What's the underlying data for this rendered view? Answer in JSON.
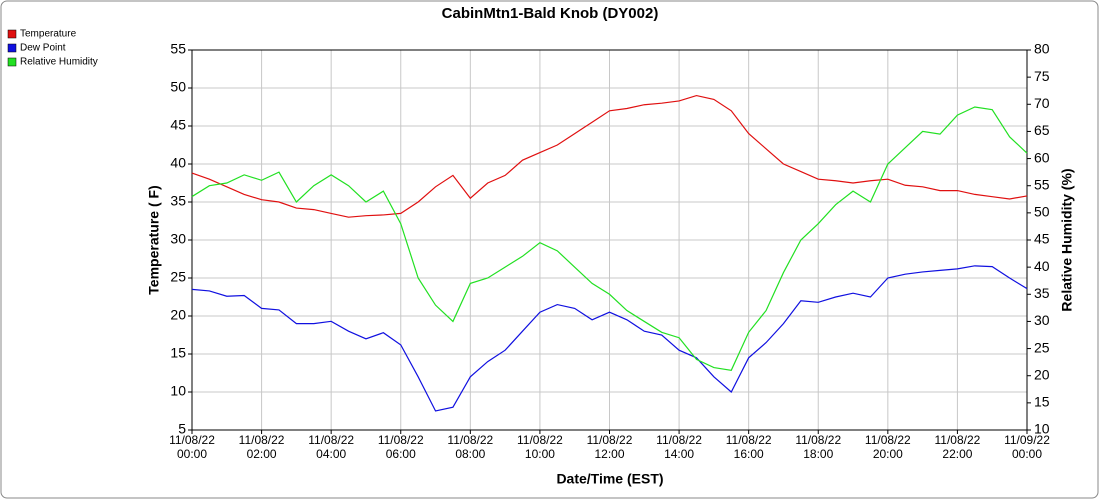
{
  "chart_data": {
    "type": "line",
    "title": "CabinMtn1-Bald Knob (DY002)",
    "xlabel": "Date/Time (EST)",
    "ylabel": "Temperature ( F)",
    "y2label": "Relative Humidity (%)",
    "x": [
      0,
      0.5,
      1,
      1.5,
      2,
      2.5,
      3,
      3.5,
      4,
      4.5,
      5,
      5.5,
      6,
      6.5,
      7,
      7.5,
      8,
      8.5,
      9,
      9.5,
      10,
      10.5,
      11,
      11.5,
      12,
      12.5,
      13,
      13.5,
      14,
      14.5,
      15,
      15.5,
      16,
      16.5,
      17,
      17.5,
      18,
      18.5,
      19,
      19.5,
      20,
      20.5,
      21,
      21.5,
      22,
      22.5,
      23,
      23.5,
      24
    ],
    "xlim": [
      0,
      24
    ],
    "xticks": [
      {
        "value": 0,
        "label": "11/08/22\n00:00"
      },
      {
        "value": 2,
        "label": "11/08/22\n02:00"
      },
      {
        "value": 4,
        "label": "11/08/22\n04:00"
      },
      {
        "value": 6,
        "label": "11/08/22\n06:00"
      },
      {
        "value": 8,
        "label": "11/08/22\n08:00"
      },
      {
        "value": 10,
        "label": "11/08/22\n10:00"
      },
      {
        "value": 12,
        "label": "11/08/22\n12:00"
      },
      {
        "value": 14,
        "label": "11/08/22\n14:00"
      },
      {
        "value": 16,
        "label": "11/08/22\n16:00"
      },
      {
        "value": 18,
        "label": "11/08/22\n18:00"
      },
      {
        "value": 20,
        "label": "11/08/22\n20:00"
      },
      {
        "value": 22,
        "label": "11/08/22\n22:00"
      },
      {
        "value": 24,
        "label": "11/09/22\n00:00"
      }
    ],
    "ylim": [
      5,
      55
    ],
    "yticks": [
      5,
      10,
      15,
      20,
      25,
      30,
      35,
      40,
      45,
      50,
      55
    ],
    "y2lim": [
      10,
      80
    ],
    "y2ticks": [
      10,
      15,
      20,
      25,
      30,
      35,
      40,
      45,
      50,
      55,
      60,
      65,
      70,
      75,
      80
    ],
    "grid": true,
    "legend": "top-left",
    "series": [
      {
        "name": "Temperature",
        "color": "#e01010",
        "values": [
          38.8,
          38,
          37,
          36,
          35.3,
          35,
          34.2,
          34,
          33.5,
          33,
          33.2,
          33.3,
          33.5,
          35,
          37,
          38.5,
          35.5,
          37.5,
          38.5,
          40.5,
          41.5,
          42.5,
          44,
          45.5,
          47,
          47.3,
          47.8,
          48,
          48.3,
          49,
          48.5,
          47,
          44,
          42,
          40,
          39,
          38,
          37.8,
          37.5,
          37.8,
          38,
          37.2,
          37,
          36.5,
          36.5,
          36,
          35.7,
          35.4,
          35.8
        ]
      },
      {
        "name": "Dew Point",
        "color": "#1010e0",
        "values": [
          23.5,
          23.3,
          22.6,
          22.7,
          21,
          20.8,
          19,
          19,
          19.3,
          18,
          17,
          17.8,
          16.2,
          12,
          7.5,
          8,
          12,
          14,
          15.5,
          18,
          20.5,
          21.5,
          21,
          19.5,
          20.5,
          19.5,
          18,
          17.5,
          15.5,
          14.5,
          12,
          10,
          14.5,
          16.5,
          19,
          22,
          21.8,
          22.5,
          23,
          22.5,
          25,
          25.5,
          25.8,
          26,
          26.2,
          26.6,
          26.5,
          25,
          23.6
        ]
      },
      {
        "name": "Relative Humidity",
        "color": "#22e022",
        "axis": "y2",
        "values": [
          53,
          55,
          55.5,
          57,
          56,
          57.5,
          52,
          55,
          57,
          55,
          52,
          54,
          48,
          38,
          33,
          30,
          37,
          38,
          40,
          42,
          44.5,
          43,
          40,
          37,
          35,
          32,
          30,
          28,
          27,
          23,
          21.5,
          21,
          28,
          32,
          39,
          45,
          48,
          51.5,
          54,
          52,
          59,
          62,
          65,
          64.5,
          68,
          69.5,
          69,
          64,
          61
        ]
      }
    ]
  }
}
